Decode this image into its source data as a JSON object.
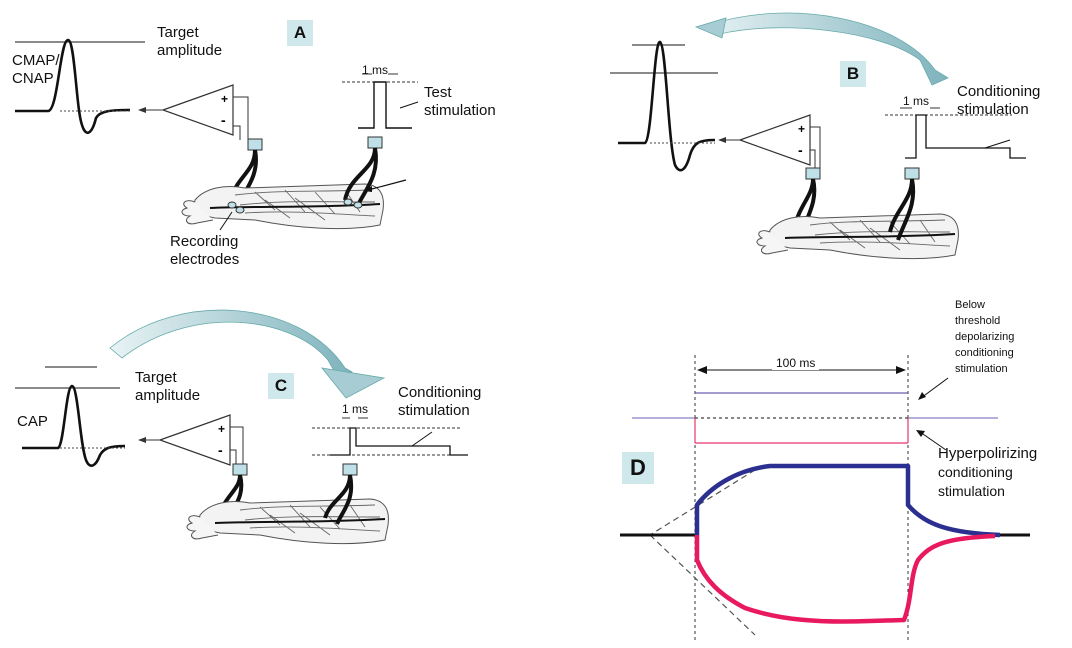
{
  "panels": {
    "A": {
      "badge": "A",
      "response_label_1": "CMAP/",
      "response_label_2": "CNAP",
      "target_label_1": "Target",
      "target_label_2": "amplitude",
      "pulse_label": "1 ms",
      "stim_label_1": "Test",
      "stim_label_2": "stimulation",
      "electrode_label_1": "Recording",
      "electrode_label_2": "electrodes"
    },
    "B": {
      "badge": "B",
      "pulse_label": "1 ms",
      "stim_label_1": "Conditioning",
      "stim_label_2": "stimulation"
    },
    "C": {
      "badge": "C",
      "response_label": "CAP",
      "target_label_1": "Target",
      "target_label_2": "amplitude",
      "pulse_label": "1 ms",
      "stim_label_1": "Conditioning",
      "stim_label_2": "stimulation"
    },
    "D": {
      "badge": "D",
      "duration_label": "100 ms",
      "depol_label_1": "Below",
      "depol_label_2": "threshold",
      "depol_label_3": "depolarizing",
      "depol_label_4": "conditioning",
      "depol_label_5": "stimulation",
      "hyper_label_1": "Hyperpolirizing",
      "hyper_label_2": "conditioning",
      "hyper_label_3": "stimulation",
      "colors": {
        "depolarizing": "#2b2f8f",
        "hyperpolarizing": "#e8195f",
        "baseline": "#111111"
      }
    }
  }
}
